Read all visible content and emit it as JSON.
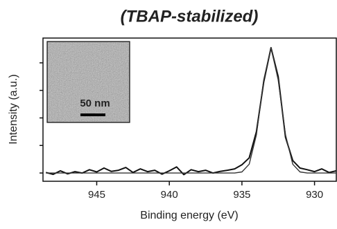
{
  "chart_data": {
    "type": "line",
    "title": "(TBAP-stabilized)",
    "x_label": "Binding energy (eV)",
    "y_label": "Intensity (a.u.)",
    "inset_label": "50 nm",
    "x": [
      948.5,
      948,
      947.5,
      947,
      946.5,
      946,
      945.5,
      945,
      944.5,
      944,
      943.5,
      943,
      942.5,
      942,
      941.5,
      941,
      940.5,
      940,
      939.5,
      939,
      938.5,
      938,
      937.5,
      937,
      936.5,
      936,
      935.5,
      935,
      934.5,
      934,
      933.5,
      933,
      932.5,
      932,
      931.5,
      931,
      930.5,
      930,
      929.5,
      929,
      928.5
    ],
    "series": [
      {
        "color": "#111111",
        "values": [
          0.02,
          -0.05,
          0.08,
          -0.03,
          0.05,
          0.0,
          0.12,
          0.04,
          0.18,
          0.06,
          0.1,
          0.2,
          0.02,
          0.15,
          0.05,
          0.1,
          -0.04,
          0.08,
          0.22,
          -0.06,
          0.12,
          0.05,
          0.1,
          0.0,
          0.06,
          0.1,
          0.15,
          0.3,
          0.55,
          1.5,
          3.3,
          4.55,
          3.5,
          1.3,
          0.45,
          0.18,
          0.12,
          0.05,
          0.15,
          0.02,
          0.08
        ]
      },
      {
        "color": "#333333",
        "values": [
          0,
          0,
          0,
          0,
          0,
          0,
          0,
          0,
          0,
          0,
          0,
          0,
          0,
          0,
          0,
          0,
          0,
          0,
          0,
          0,
          0,
          0,
          0,
          0,
          0,
          0,
          0,
          0.04,
          0.32,
          1.39,
          3.38,
          4.55,
          3.38,
          1.39,
          0.32,
          0.04,
          0,
          0,
          0,
          0,
          0
        ]
      }
    ],
    "xlim": [
      948.7,
      928.5
    ],
    "xticks": [
      945,
      940,
      935,
      930
    ],
    "ylim": [
      -0.3,
      4.9
    ],
    "yticks": [
      0,
      1,
      2,
      3,
      4
    ]
  }
}
